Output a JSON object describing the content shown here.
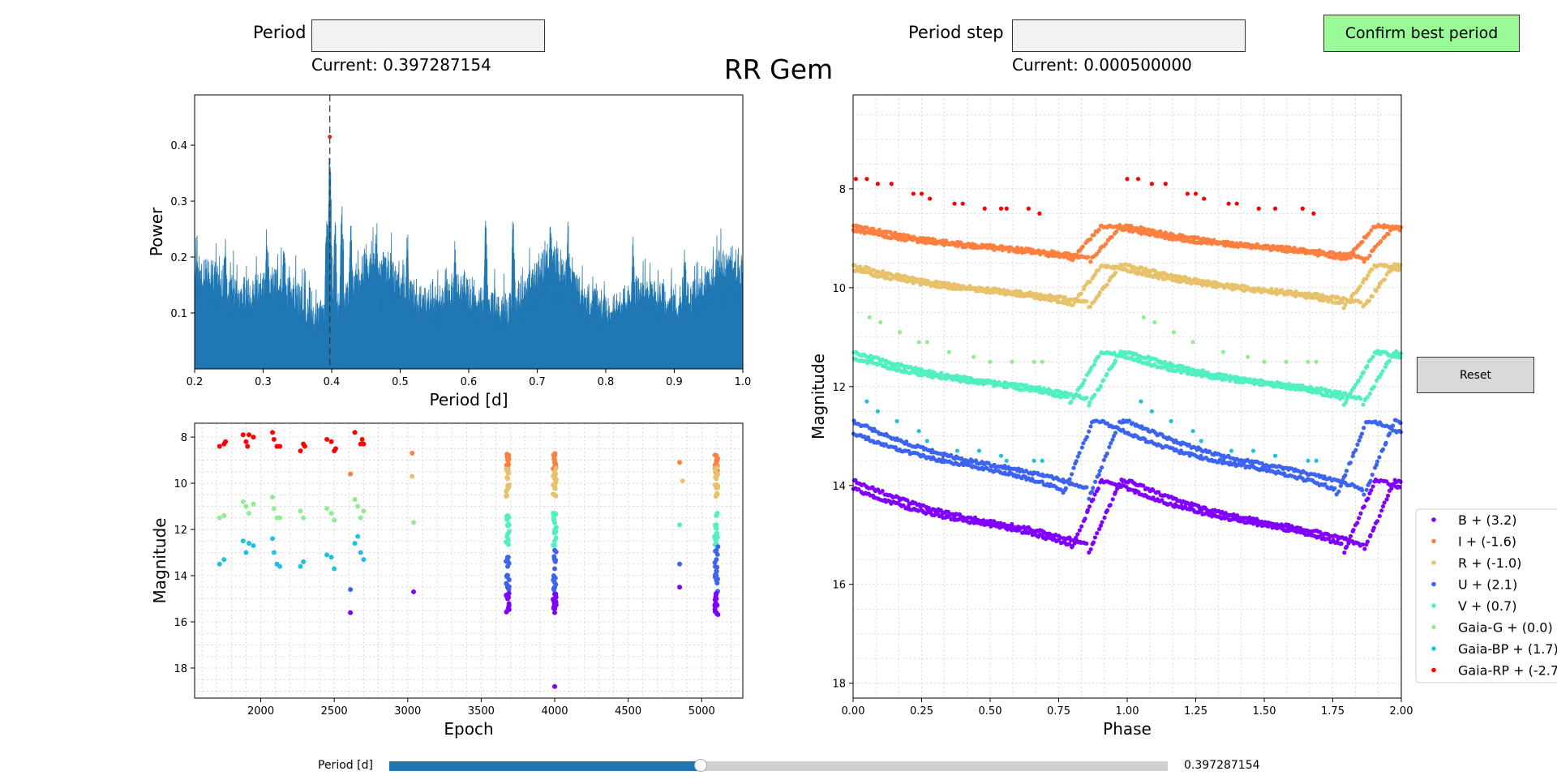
{
  "controls": {
    "period_label": "Period",
    "period_value": "",
    "period_current": "Current: 0.397287154",
    "step_label": "Period step",
    "step_value": "",
    "step_current": "Current: 0.000500000",
    "confirm_label": "Confirm best period",
    "reset_label": "Reset",
    "confirm_color": "#98fb98",
    "reset_color": "#d9d9d9"
  },
  "title": "RR Gem",
  "slider": {
    "label": "Period [d]",
    "value_text": "0.397287154",
    "fraction": 0.4,
    "fill_color": "#1f77b4",
    "track_color": "#d0d0d0"
  },
  "chart_data": [
    {
      "type": "bar",
      "name": "periodogram",
      "xlabel": "Period [d]",
      "ylabel": "Power",
      "xlim": [
        0.2,
        1.0
      ],
      "ylim": [
        0.0,
        0.49
      ],
      "xticks": [
        "0.2",
        "0.3",
        "0.4",
        "0.5",
        "0.6",
        "0.7",
        "0.8",
        "0.9",
        "1.0"
      ],
      "yticks": [
        "0.1",
        "0.2",
        "0.3",
        "0.4"
      ],
      "best_period": 0.397287154,
      "best_power": 0.415,
      "color": "#1f77b4",
      "peak_marker_color": "#d62728",
      "peaks": [
        [
          0.3973,
          0.415
        ],
        [
          0.398,
          0.34
        ],
        [
          0.393,
          0.3
        ],
        [
          0.405,
          0.28
        ],
        [
          0.415,
          0.3
        ],
        [
          0.428,
          0.27
        ],
        [
          0.465,
          0.24
        ],
        [
          0.305,
          0.24
        ],
        [
          0.245,
          0.235
        ],
        [
          0.33,
          0.22
        ],
        [
          0.51,
          0.23
        ],
        [
          0.58,
          0.235
        ],
        [
          0.625,
          0.28
        ],
        [
          0.665,
          0.27
        ],
        [
          0.72,
          0.27
        ],
        [
          0.745,
          0.245
        ],
        [
          0.84,
          0.235
        ],
        [
          0.915,
          0.215
        ],
        [
          0.98,
          0.2
        ]
      ],
      "grid": false
    },
    {
      "type": "scatter",
      "name": "epoch-magnitude",
      "xlabel": "Epoch",
      "ylabel": "Magnitude",
      "xlim": [
        1550,
        5280
      ],
      "ylim": [
        19.3,
        7.4
      ],
      "xticks": [
        "2000",
        "2500",
        "3000",
        "3500",
        "4000",
        "4500",
        "5000"
      ],
      "yticks": [
        "8",
        "10",
        "12",
        "14",
        "16",
        "18"
      ],
      "grid": true,
      "series": [
        {
          "name": "Gaia-RP",
          "color": "#ff0000",
          "points": [
            [
              1720,
              8.4
            ],
            [
              1750,
              8.3
            ],
            [
              1760,
              8.2
            ],
            [
              1880,
              7.9
            ],
            [
              1900,
              8.2
            ],
            [
              1910,
              8.4
            ],
            [
              1920,
              7.9
            ],
            [
              1950,
              8.0
            ],
            [
              2080,
              7.8
            ],
            [
              2090,
              8.1
            ],
            [
              2110,
              8.4
            ],
            [
              2130,
              8.4
            ],
            [
              2270,
              8.6
            ],
            [
              2290,
              8.3
            ],
            [
              2300,
              8.4
            ],
            [
              2450,
              8.1
            ],
            [
              2480,
              8.2
            ],
            [
              2500,
              8.6
            ],
            [
              2510,
              8.5
            ],
            [
              2640,
              7.8
            ],
            [
              2680,
              8.3
            ],
            [
              2690,
              8.1
            ],
            [
              2700,
              8.3
            ]
          ]
        },
        {
          "name": "I",
          "color": "#ff7f3f",
          "points": [
            [
              2610,
              9.6
            ],
            [
              3030,
              8.7
            ],
            [
              3680,
              8.8
            ],
            [
              3680,
              9.0
            ],
            [
              3680,
              9.3
            ],
            [
              4000,
              8.8
            ],
            [
              4000,
              9.0
            ],
            [
              4000,
              9.3
            ],
            [
              4850,
              9.1
            ],
            [
              5100,
              8.8
            ],
            [
              5100,
              9.0
            ],
            [
              5100,
              9.3
            ]
          ]
        },
        {
          "name": "R",
          "color": "#e8c26a",
          "points": [
            [
              3030,
              9.7
            ],
            [
              3680,
              9.5
            ],
            [
              3680,
              9.8
            ],
            [
              3680,
              10.1
            ],
            [
              4000,
              9.4
            ],
            [
              4000,
              9.8
            ],
            [
              4000,
              10.2
            ],
            [
              4000,
              10.5
            ],
            [
              4870,
              9.9
            ],
            [
              5100,
              9.4
            ],
            [
              5100,
              9.8
            ],
            [
              5100,
              10.2
            ],
            [
              5100,
              10.5
            ]
          ]
        },
        {
          "name": "Gaia-G",
          "color": "#90ee90",
          "points": [
            [
              1720,
              11.5
            ],
            [
              1750,
              11.4
            ],
            [
              1880,
              10.8
            ],
            [
              1900,
              11.0
            ],
            [
              1920,
              11.3
            ],
            [
              1950,
              10.9
            ],
            [
              2080,
              10.6
            ],
            [
              2090,
              11.1
            ],
            [
              2110,
              11.5
            ],
            [
              2130,
              11.5
            ],
            [
              2270,
              11.2
            ],
            [
              2290,
              11.5
            ],
            [
              2450,
              11.1
            ],
            [
              2480,
              11.3
            ],
            [
              2500,
              11.6
            ],
            [
              2640,
              10.7
            ],
            [
              2660,
              11.0
            ],
            [
              2680,
              11.5
            ],
            [
              2700,
              11.2
            ],
            [
              3040,
              11.7
            ]
          ]
        },
        {
          "name": "V",
          "color": "#50f0c0",
          "points": [
            [
              3680,
              11.4
            ],
            [
              3680,
              11.8
            ],
            [
              3680,
              12.2
            ],
            [
              3680,
              12.6
            ],
            [
              4000,
              11.3
            ],
            [
              4000,
              11.7
            ],
            [
              4000,
              12.1
            ],
            [
              4000,
              12.5
            ],
            [
              4850,
              11.8
            ],
            [
              5100,
              11.4
            ],
            [
              5100,
              11.8
            ],
            [
              5100,
              12.2
            ],
            [
              5100,
              12.6
            ]
          ]
        },
        {
          "name": "Gaia-BP",
          "color": "#20c0e0",
          "points": [
            [
              1720,
              13.5
            ],
            [
              1750,
              13.3
            ],
            [
              1880,
              12.5
            ],
            [
              1900,
              13.0
            ],
            [
              1920,
              12.6
            ],
            [
              1950,
              12.7
            ],
            [
              2080,
              12.4
            ],
            [
              2090,
              13.0
            ],
            [
              2110,
              13.5
            ],
            [
              2130,
              13.6
            ],
            [
              2270,
              13.6
            ],
            [
              2290,
              13.4
            ],
            [
              2450,
              13.1
            ],
            [
              2480,
              13.2
            ],
            [
              2500,
              13.7
            ],
            [
              2640,
              12.6
            ],
            [
              2660,
              12.3
            ],
            [
              2680,
              13.0
            ],
            [
              2700,
              13.3
            ]
          ]
        },
        {
          "name": "U",
          "color": "#3c64f0",
          "points": [
            [
              2610,
              14.6
            ],
            [
              3680,
              13.2
            ],
            [
              3680,
              13.6
            ],
            [
              3680,
              14.0
            ],
            [
              4000,
              12.9
            ],
            [
              4000,
              13.3
            ],
            [
              4000,
              13.7
            ],
            [
              4000,
              14.1
            ],
            [
              4000,
              14.5
            ],
            [
              4850,
              13.5
            ],
            [
              5100,
              12.9
            ],
            [
              5100,
              13.3
            ],
            [
              5100,
              13.8
            ],
            [
              5100,
              14.2
            ]
          ]
        },
        {
          "name": "B",
          "color": "#8000ff",
          "points": [
            [
              2610,
              15.6
            ],
            [
              3040,
              14.7
            ],
            [
              3680,
              14.5
            ],
            [
              3680,
              15.0
            ],
            [
              3680,
              15.5
            ],
            [
              4000,
              14.8
            ],
            [
              4000,
              15.1
            ],
            [
              4000,
              15.4
            ],
            [
              4000,
              15.6
            ],
            [
              4000,
              18.8
            ],
            [
              4850,
              14.5
            ],
            [
              5100,
              15.0
            ],
            [
              5100,
              15.3
            ],
            [
              5100,
              15.6
            ]
          ]
        }
      ]
    },
    {
      "type": "scatter",
      "name": "phase-magnitude",
      "xlabel": "Phase",
      "ylabel": "Magnitude",
      "xlim": [
        0.0,
        2.0
      ],
      "ylim": [
        18.3,
        6.1
      ],
      "xticks": [
        "0.00",
        "0.25",
        "0.50",
        "0.75",
        "1.00",
        "1.25",
        "1.50",
        "1.75",
        "2.00"
      ],
      "yticks": [
        "8",
        "10",
        "12",
        "14",
        "16",
        "18"
      ],
      "grid": true,
      "legend_position": "right",
      "legend": [
        {
          "label": "B + (3.2)",
          "color": "#8000ff"
        },
        {
          "label": "I + (-1.6)",
          "color": "#ff7f3f"
        },
        {
          "label": "R + (-1.0)",
          "color": "#e8c26a"
        },
        {
          "label": "U + (2.1)",
          "color": "#3c64f0"
        },
        {
          "label": "V + (0.7)",
          "color": "#50f0c0"
        },
        {
          "label": "Gaia-G + (0.0)",
          "color": "#90ee90"
        },
        {
          "label": "Gaia-BP + (1.7)",
          "color": "#20c0e0"
        },
        {
          "label": "Gaia-RP + (-2.7)",
          "color": "#ff0000"
        }
      ],
      "series": [
        {
          "name": "Gaia-RP",
          "color": "#ff0000",
          "points": [
            [
              0.01,
              7.8
            ],
            [
              0.05,
              7.8
            ],
            [
              0.09,
              7.9
            ],
            [
              0.14,
              7.9
            ],
            [
              0.22,
              8.1
            ],
            [
              0.25,
              8.1
            ],
            [
              0.28,
              8.2
            ],
            [
              0.37,
              8.3
            ],
            [
              0.4,
              8.3
            ],
            [
              0.48,
              8.4
            ],
            [
              0.54,
              8.4
            ],
            [
              0.56,
              8.4
            ],
            [
              0.64,
              8.4
            ],
            [
              0.68,
              8.5
            ],
            [
              1.0,
              7.8
            ],
            [
              1.04,
              7.8
            ],
            [
              1.09,
              7.9
            ],
            [
              1.14,
              7.9
            ],
            [
              1.22,
              8.1
            ],
            [
              1.25,
              8.1
            ],
            [
              1.28,
              8.2
            ],
            [
              1.37,
              8.3
            ],
            [
              1.4,
              8.3
            ],
            [
              1.48,
              8.4
            ],
            [
              1.54,
              8.4
            ],
            [
              1.64,
              8.4
            ],
            [
              1.68,
              8.5
            ]
          ]
        },
        {
          "name": "Gaia-G",
          "color": "#90ee90",
          "points": [
            [
              0.06,
              10.6
            ],
            [
              0.1,
              10.7
            ],
            [
              0.17,
              10.9
            ],
            [
              0.24,
              11.1
            ],
            [
              0.27,
              11.1
            ],
            [
              0.35,
              11.3
            ],
            [
              0.44,
              11.4
            ],
            [
              0.5,
              11.5
            ],
            [
              0.58,
              11.5
            ],
            [
              0.66,
              11.5
            ],
            [
              0.69,
              11.5
            ],
            [
              1.06,
              10.6
            ],
            [
              1.1,
              10.7
            ],
            [
              1.17,
              10.9
            ],
            [
              1.24,
              11.1
            ],
            [
              1.35,
              11.3
            ],
            [
              1.44,
              11.4
            ],
            [
              1.5,
              11.5
            ],
            [
              1.58,
              11.5
            ],
            [
              1.66,
              11.5
            ],
            [
              1.69,
              11.5
            ]
          ]
        },
        {
          "name": "Gaia-BP",
          "color": "#20c0e0",
          "points": [
            [
              0.05,
              12.3
            ],
            [
              0.09,
              12.5
            ],
            [
              0.16,
              12.7
            ],
            [
              0.24,
              12.9
            ],
            [
              0.27,
              13.1
            ],
            [
              0.38,
              13.3
            ],
            [
              0.46,
              13.3
            ],
            [
              0.54,
              13.4
            ],
            [
              0.56,
              13.5
            ],
            [
              0.66,
              13.5
            ],
            [
              0.69,
              13.5
            ],
            [
              1.05,
              12.3
            ],
            [
              1.09,
              12.5
            ],
            [
              1.16,
              12.7
            ],
            [
              1.24,
              12.9
            ],
            [
              1.27,
              13.1
            ],
            [
              1.38,
              13.3
            ],
            [
              1.46,
              13.3
            ],
            [
              1.54,
              13.4
            ],
            [
              1.66,
              13.5
            ],
            [
              1.69,
              13.5
            ]
          ]
        }
      ],
      "curves": [
        {
          "name": "I",
          "color": "#ff7f3f",
          "base": 8.75,
          "amp": 0.9,
          "offsets": [
            0.0,
            0.07
          ]
        },
        {
          "name": "R",
          "color": "#e8c26a",
          "base": 9.55,
          "amp": 1.05,
          "offsets": [
            0.0,
            0.07
          ]
        },
        {
          "name": "V",
          "color": "#50f0c0",
          "base": 11.3,
          "amp": 1.3,
          "offsets": [
            0.0,
            0.07
          ]
        },
        {
          "name": "U",
          "color": "#3c64f0",
          "base": 12.7,
          "amp": 1.9,
          "offsets": [
            0.0,
            0.1
          ]
        },
        {
          "name": "B",
          "color": "#8000ff",
          "base": 13.9,
          "amp": 1.8,
          "offsets": [
            0.0,
            0.07
          ]
        }
      ]
    }
  ]
}
